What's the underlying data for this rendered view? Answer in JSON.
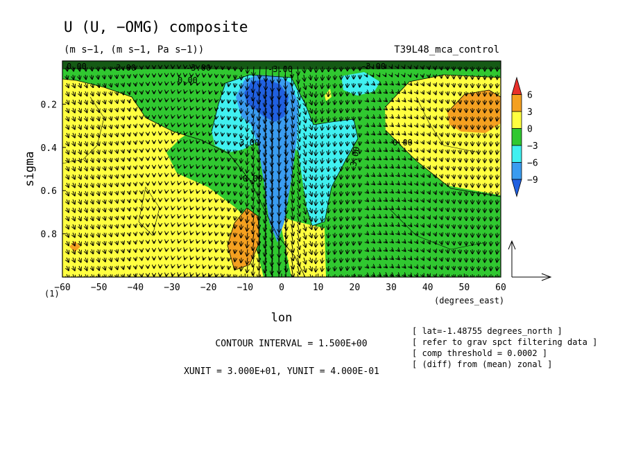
{
  "header": {
    "title": "U (U, −OMG) composite",
    "units": "(m s−1, (m s−1, Pa s−1))",
    "run": "T39L48_mca_control"
  },
  "chart_data": {
    "type": "contour-vector",
    "x": {
      "label": "lon",
      "unit": "(degrees_east)",
      "range": [
        -60,
        60
      ],
      "ticks": [
        -60,
        -50,
        -40,
        -30,
        -20,
        -10,
        0,
        10,
        20,
        30,
        40,
        50,
        60
      ],
      "tick_labels": [
        "−60",
        "−50",
        "−40",
        "−30",
        "−20",
        "−10",
        "0",
        "10",
        "20",
        "30",
        "40",
        "50",
        "60"
      ],
      "corner_label": "(1)"
    },
    "y": {
      "label": "sigma",
      "range": [
        0.0,
        1.0
      ],
      "inverted": true,
      "ticks": [
        0.2,
        0.4,
        0.6,
        0.8
      ],
      "tick_labels": [
        "0.2",
        "0.4",
        "0.6",
        "0.8"
      ]
    },
    "colorbar": {
      "levels": [
        "6",
        "3",
        "0",
        "−3",
        "−6",
        "−9"
      ],
      "colors": [
        "#e8302a",
        "#f4a020",
        "#ffff40",
        "#30c830",
        "#40f0f0",
        "#3a9cf0",
        "#2060e0"
      ]
    },
    "contour_labels": [
      "0.00",
      "-3.00",
      "-3.00",
      "-3.00",
      "0.00",
      "0.00",
      "-3.00",
      "0.00",
      "-3.00",
      "-3.00"
    ],
    "contour_interval": "CONTOUR INTERVAL = 1.500E+00",
    "vector_units": "XUNIT = 3.000E+01, YUNIT = 4.000E-01",
    "notes": [
      "[ lat=-1.48755 degrees_north ]",
      "[ refer to grav spct filtering data ]",
      "[ comp threshold = 0.0002 ]",
      "[ (diff) from (mean) zonal ]"
    ]
  }
}
